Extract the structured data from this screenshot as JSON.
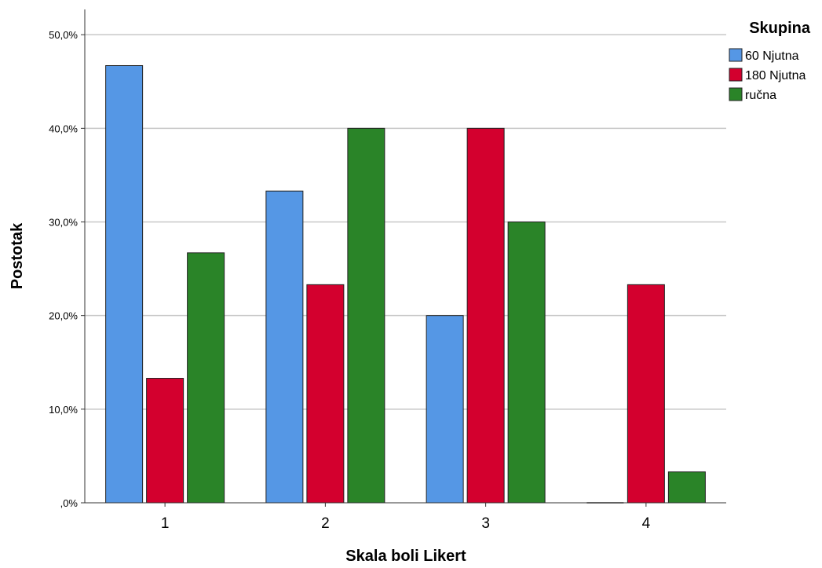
{
  "chart_data": {
    "type": "bar",
    "xlabel": "Skala boli Likert",
    "ylabel": "Postotak",
    "categories": [
      "1",
      "2",
      "3",
      "4"
    ],
    "y_ticks": [
      ",0%",
      "10,0%",
      "20,0%",
      "30,0%",
      "40,0%",
      "50,0%"
    ],
    "ylim": [
      0,
      52.7
    ],
    "grid": true,
    "legend": {
      "title": "Skupina",
      "position": "top-right"
    },
    "series": [
      {
        "name": "60 Njutna",
        "color": "#5597e5",
        "values": [
          46.7,
          33.3,
          20.0,
          0.0
        ]
      },
      {
        "name": "180 Njutna",
        "color": "#d3002e",
        "values": [
          13.3,
          23.3,
          40.0,
          23.3
        ]
      },
      {
        "name": "ručna",
        "color": "#2a8428",
        "values": [
          26.7,
          40.0,
          30.0,
          3.3
        ]
      }
    ]
  }
}
